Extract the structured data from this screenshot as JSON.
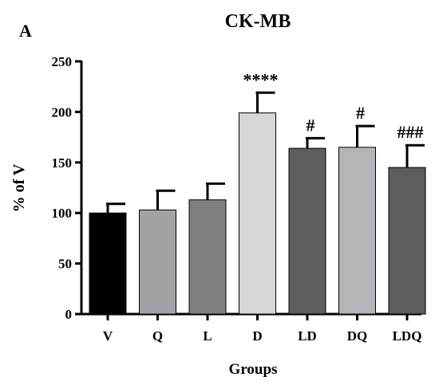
{
  "panel_label": "A",
  "chart_data": {
    "type": "bar",
    "title": "CK-MB",
    "xlabel": "Groups",
    "ylabel": "% of V",
    "ylim": [
      0,
      250
    ],
    "yticks": [
      0,
      50,
      100,
      150,
      200,
      250
    ],
    "categories": [
      "V",
      "Q",
      "L",
      "D",
      "LD",
      "DQ",
      "LDQ"
    ],
    "values": [
      100,
      103,
      113,
      199,
      164,
      165,
      145
    ],
    "errors": [
      9,
      19,
      16,
      20,
      10,
      21,
      22
    ],
    "annotations": [
      "",
      "",
      "",
      "****",
      "#",
      "#",
      "###"
    ],
    "colors": [
      "#000000",
      "#a3a2a7",
      "#7f7f7f",
      "#d7d7d7",
      "#5d5d5d",
      "#b5b4b9",
      "#5d5d5d"
    ],
    "grid": false,
    "legend": "none"
  }
}
